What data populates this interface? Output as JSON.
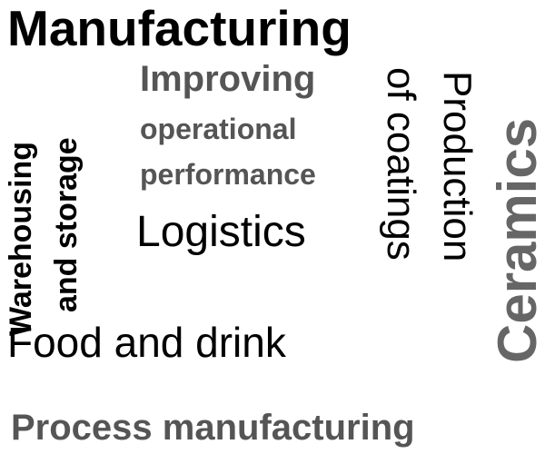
{
  "words": {
    "manufacturing": "Manufacturing",
    "improving": "Improving",
    "operational": "operational",
    "performance": "performance",
    "logistics": "Logistics",
    "food_and_drink": "Food and drink",
    "process_manufacturing": "Process manufacturing",
    "warehousing": "Warehousing",
    "and_storage": "and storage",
    "of_coatings": "of coatings",
    "production": "Production",
    "ceramics": "Ceramics"
  },
  "colors": {
    "black": "#000000",
    "dark_gray": "#555555",
    "mid_gray": "#666666",
    "background": "#ffffff"
  }
}
